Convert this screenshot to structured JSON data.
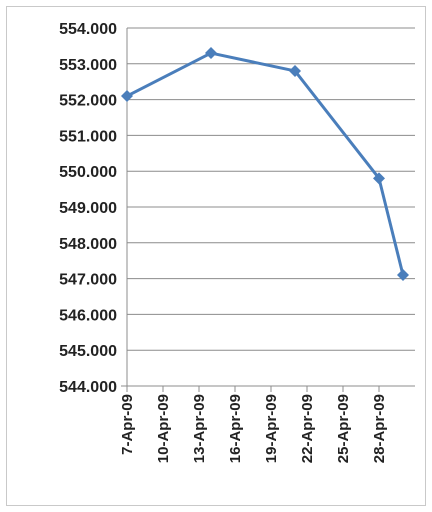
{
  "chart_data": {
    "type": "line",
    "title": "",
    "xlabel": "",
    "ylabel": "",
    "x": [
      "2009-04-07",
      "2009-04-14",
      "2009-04-21",
      "2009-04-28",
      "2009-04-29",
      "2009-04-30"
    ],
    "series": [
      {
        "values": [
          552.1,
          553.3,
          552.8,
          549.8,
          547.1
        ],
        "x": [
          "2009-04-07",
          "2009-04-14",
          "2009-04-21",
          "2009-04-28",
          "2009-04-30"
        ]
      }
    ],
    "ylim": [
      544.0,
      554.0
    ],
    "y_ticks": [
      "544.000",
      "545.000",
      "546.000",
      "547.000",
      "548.000",
      "549.000",
      "550.000",
      "551.000",
      "552.000",
      "553.000",
      "554.000"
    ],
    "x_ticks": [
      "7-Apr-09",
      "10-Apr-09",
      "13-Apr-09",
      "16-Apr-09",
      "19-Apr-09",
      "22-Apr-09",
      "25-Apr-09",
      "28-Apr-09"
    ],
    "grid": true,
    "legend": "none",
    "colors": {
      "line": "#4a7ebb",
      "grid": "#8c8c8c",
      "axis": "#8c8c8c"
    }
  }
}
